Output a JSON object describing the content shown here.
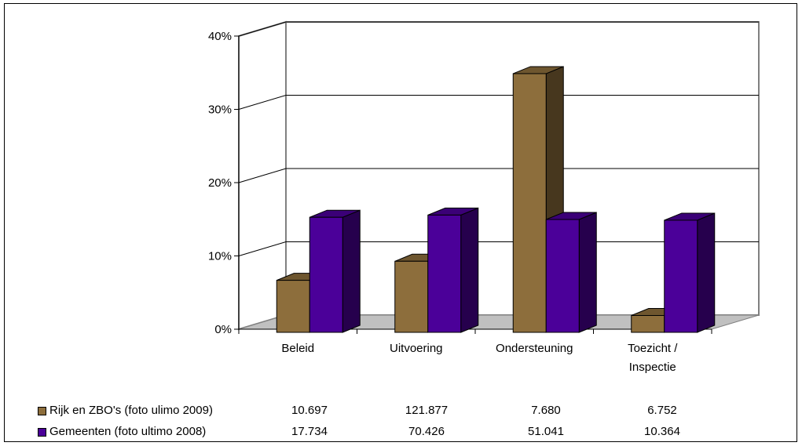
{
  "chart_data": {
    "type": "bar",
    "title": "",
    "xlabel": "",
    "ylabel": "",
    "three_d": true,
    "grid": true,
    "categories": [
      "Beleid",
      "Uitvoering",
      "Ondersteuning",
      "Toezicht / Inspectie"
    ],
    "category_lines": [
      [
        "Beleid"
      ],
      [
        "Uitvoering"
      ],
      [
        "Ondersteuning"
      ],
      [
        "Toezicht /",
        "Inspectie"
      ]
    ],
    "yticks": [
      "0%",
      "10%",
      "20%",
      "30%",
      "40%"
    ],
    "ylim": [
      0,
      40
    ],
    "y_unit": "percent",
    "series": [
      {
        "name": "Rijk en ZBO's (foto ulimo 2009)",
        "color": "#8d6e3c",
        "values": [
          7.1,
          9.7,
          35.3,
          2.3
        ],
        "table_values": [
          "10.697",
          "121.877",
          "7.680",
          "6.752"
        ]
      },
      {
        "name": "Gemeenten (foto ultimo 2008)",
        "color": "#4b0099",
        "values": [
          15.7,
          16.0,
          15.4,
          15.3
        ],
        "table_values": [
          "17.734",
          "70.426",
          "51.041",
          "10.364"
        ]
      }
    ],
    "legend_placement": "bottom (data table)"
  }
}
